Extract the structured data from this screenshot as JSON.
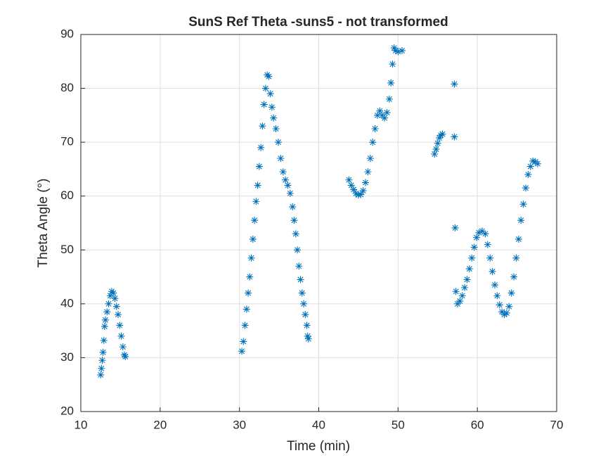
{
  "chart_data": {
    "type": "scatter",
    "title": "SunS Ref Theta -suns5 - not transformed",
    "x_label": "Time (min)",
    "y_label": "Theta Angle (°)",
    "color": "#0072bd",
    "marker": "asterisk",
    "grid": true,
    "xlim": [
      10,
      70
    ],
    "xticks": [
      10,
      20,
      30,
      40,
      50,
      60,
      70
    ],
    "ylim": [
      20,
      90
    ],
    "yticks": [
      20,
      30,
      40,
      50,
      60,
      70,
      80,
      90
    ],
    "x": [
      12.5,
      12.6,
      12.7,
      12.8,
      12.9,
      13.0,
      13.1,
      13.3,
      13.5,
      13.7,
      13.9,
      14.1,
      14.3,
      14.5,
      14.7,
      14.9,
      15.1,
      15.3,
      15.5,
      15.6,
      30.3,
      30.5,
      30.7,
      30.9,
      31.1,
      31.3,
      31.5,
      31.7,
      31.9,
      32.1,
      32.3,
      32.5,
      32.7,
      32.9,
      33.1,
      33.3,
      33.5,
      33.7,
      33.9,
      34.1,
      34.3,
      34.6,
      34.9,
      35.2,
      35.5,
      35.8,
      36.1,
      36.4,
      36.7,
      36.9,
      37.1,
      37.3,
      37.5,
      37.7,
      37.9,
      38.1,
      38.3,
      38.5,
      38.6,
      38.7,
      43.8,
      44.1,
      44.4,
      44.7,
      45.0,
      45.3,
      45.6,
      45.9,
      46.2,
      46.5,
      46.8,
      47.1,
      47.4,
      47.7,
      48.0,
      48.3,
      48.6,
      48.9,
      49.1,
      49.3,
      49.5,
      49.7,
      50.0,
      50.5,
      54.6,
      54.8,
      55.0,
      55.2,
      55.4,
      55.6,
      57.1,
      57.1,
      57.2,
      57.3,
      57.5,
      57.8,
      58.1,
      58.4,
      58.7,
      59.0,
      59.3,
      59.6,
      59.9,
      60.2,
      60.6,
      61.0,
      61.3,
      61.6,
      61.9,
      62.2,
      62.5,
      62.8,
      63.1,
      63.4,
      63.7,
      64.0,
      64.3,
      64.6,
      64.9,
      65.2,
      65.5,
      65.8,
      66.1,
      66.4,
      66.7,
      67.0,
      67.3,
      67.6
    ],
    "values": [
      26.8,
      28,
      29.5,
      31,
      33.2,
      35.8,
      37,
      38.5,
      40,
      41.5,
      42.3,
      42,
      41,
      39.5,
      38,
      36,
      34,
      32,
      30.5,
      30.2,
      31.2,
      33,
      36,
      39,
      42,
      45,
      48.5,
      52,
      55.5,
      59,
      62,
      65.5,
      69,
      73,
      77,
      80,
      82.5,
      82.2,
      79,
      76.5,
      74.5,
      72.5,
      70,
      67,
      64.5,
      63,
      62,
      60.5,
      58,
      55.5,
      53,
      50,
      47,
      44.5,
      42,
      40,
      38,
      36,
      34,
      33.5,
      63,
      62,
      61.2,
      60.5,
      60.2,
      60.3,
      61,
      62.5,
      64.5,
      67,
      70,
      72.5,
      75,
      75.8,
      75,
      74.5,
      75.5,
      78,
      81,
      84.5,
      87.5,
      87,
      86.8,
      87,
      67.8,
      68.7,
      69.8,
      70.8,
      71.3,
      71.5,
      80.8,
      71,
      54.1,
      42.3,
      40,
      40.5,
      41.5,
      43,
      44.5,
      46.5,
      48.5,
      50.5,
      52.3,
      53.2,
      53.5,
      53,
      51,
      48.5,
      46,
      43.5,
      41.5,
      39.8,
      38.5,
      38,
      38.3,
      39.5,
      42,
      45,
      48.5,
      52,
      55.5,
      58.5,
      61.5,
      64,
      65.5,
      66.5,
      66.4,
      66
    ]
  }
}
